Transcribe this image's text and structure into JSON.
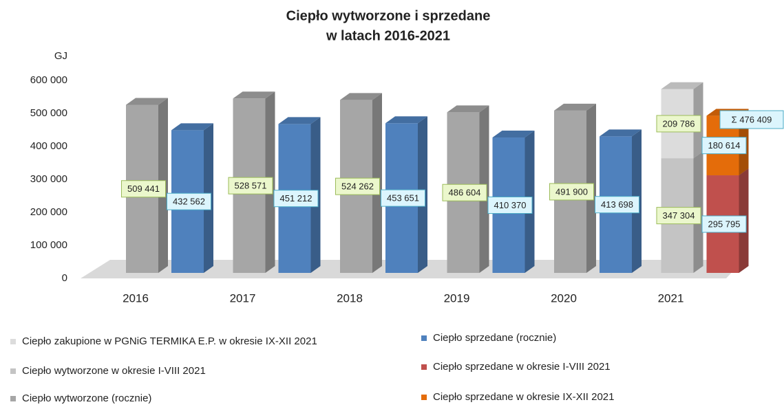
{
  "chart_data": {
    "type": "bar3d",
    "title": [
      "Ciepło wytworzone i sprzedane",
      "w latach 2016-2021"
    ],
    "y_label": "GJ",
    "categories": [
      "2016",
      "2017",
      "2018",
      "2019",
      "2020",
      "2021"
    ],
    "series": [
      {
        "name": "Ciepło zakupione w PGNiG TERMIKA E.P. w okresie IX-XII 2021",
        "color": "#dcdcdc",
        "values": [
          null,
          null,
          null,
          null,
          null,
          209786
        ],
        "value_labels": [
          null,
          null,
          null,
          null,
          null,
          "209 786"
        ]
      },
      {
        "name": "Ciepło wytworzone w okresie I-VIII 2021",
        "color": "#c4c4c4",
        "values": [
          null,
          null,
          null,
          null,
          null,
          347304
        ],
        "value_labels": [
          null,
          null,
          null,
          null,
          null,
          "347 304"
        ]
      },
      {
        "name": "Ciepło wytworzone (rocznie)",
        "color": "#a6a6a6",
        "values": [
          509441,
          528571,
          524262,
          486604,
          491900,
          null
        ],
        "value_labels": [
          "509 441",
          "528 571",
          "524 262",
          "486 604",
          "491 900",
          null
        ]
      },
      {
        "name": "Ciepło sprzedane (rocznie)",
        "color": "#4f81bd",
        "values": [
          432562,
          451212,
          453651,
          410370,
          413698,
          null
        ],
        "value_labels": [
          "432 562",
          "451 212",
          "453 651",
          "410 370",
          "413 698",
          null
        ]
      },
      {
        "name": "Ciepło sprzedane w okresie I-VIII 2021",
        "color": "#c0504d",
        "values": [
          null,
          null,
          null,
          null,
          null,
          295795
        ],
        "value_labels": [
          null,
          null,
          null,
          null,
          null,
          "295 795"
        ]
      },
      {
        "name": "Ciepło sprzedane w okresie IX-XII 2021",
        "color": "#e46c0a",
        "values": [
          null,
          null,
          null,
          null,
          null,
          180614
        ],
        "value_labels": [
          null,
          null,
          null,
          null,
          null,
          "180 614"
        ]
      }
    ],
    "annotation": "Σ 476 409",
    "ylim": [
      0,
      600000
    ],
    "yticks": [
      0,
      {
        "value": 100000,
        "label": "100 000"
      },
      {
        "value": 200000,
        "label": "200 000"
      },
      {
        "value": 300000,
        "label": "300 000"
      },
      {
        "value": 400000,
        "label": "400 000"
      },
      {
        "value": 500000,
        "label": "500 000"
      },
      {
        "value": 600000,
        "label": "600 000"
      }
    ]
  }
}
